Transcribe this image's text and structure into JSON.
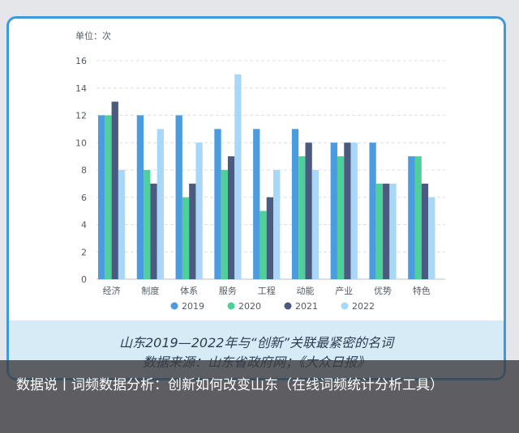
{
  "chart_data": {
    "type": "bar",
    "unit_label": "单位：次",
    "categories": [
      "经济",
      "制度",
      "体系",
      "服务",
      "工程",
      "动能",
      "产业",
      "优势",
      "特色"
    ],
    "series": [
      {
        "name": "2019",
        "color": "#4a9be0",
        "values": [
          12,
          12,
          12,
          11,
          11,
          11,
          10,
          10,
          9
        ]
      },
      {
        "name": "2020",
        "color": "#4fcf9a",
        "values": [
          12,
          8,
          6,
          8,
          5,
          9,
          9,
          7,
          9
        ]
      },
      {
        "name": "2021",
        "color": "#4a5a80",
        "values": [
          13,
          7,
          7,
          9,
          6,
          10,
          10,
          7,
          7
        ]
      },
      {
        "name": "2022",
        "color": "#a8d8f5",
        "values": [
          8,
          11,
          10,
          15,
          8,
          8,
          10,
          7,
          6
        ]
      }
    ],
    "yticks": [
      0,
      2,
      4,
      6,
      8,
      10,
      12,
      14,
      16
    ],
    "ylim": [
      0,
      16
    ],
    "grid": true,
    "legend_position": "bottom"
  },
  "caption": {
    "title": "山东2019—2022年与“创新”关联最紧密的名词",
    "source": "数据来源：山东省政府网；《大众日报》"
  },
  "overlay": {
    "text": "数据说丨词频数据分析：创新如何改变山东（在线词频统计分析工具）"
  }
}
